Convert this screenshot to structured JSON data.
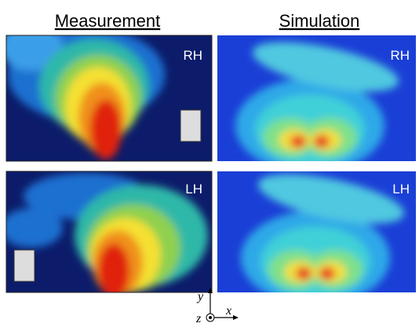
{
  "headers": [
    "Measurement",
    "Simulation"
  ],
  "panels": [
    {
      "label": "RH"
    },
    {
      "label": "RH"
    },
    {
      "label": "LH"
    },
    {
      "label": "LH"
    }
  ],
  "axes": {
    "vertical": "y",
    "out": "z",
    "horizontal": "x"
  }
}
